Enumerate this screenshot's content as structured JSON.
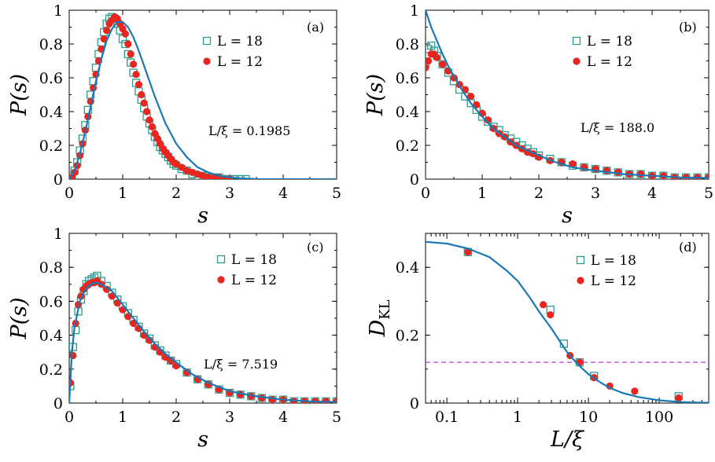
{
  "chart_data": [
    {
      "panel": "(a)",
      "type": "scatter",
      "xlabel": "s",
      "ylabel": "P(s)",
      "xlim": [
        0,
        5
      ],
      "ylim": [
        0,
        1
      ],
      "xticks": [
        "0",
        "1",
        "2",
        "3",
        "4",
        "5"
      ],
      "yticks": [
        "0",
        "0.2",
        "0.4",
        "0.6",
        "0.8",
        "1"
      ],
      "annotation": "L/ξ = 0.1985",
      "legend_position": "top-right",
      "series": [
        {
          "name": "L = 18",
          "marker": "open-square",
          "color": "#2a9d8f",
          "x": [
            0.05,
            0.1,
            0.15,
            0.2,
            0.25,
            0.3,
            0.35,
            0.4,
            0.45,
            0.5,
            0.55,
            0.6,
            0.65,
            0.7,
            0.75,
            0.8,
            0.85,
            0.9,
            0.95,
            1.0,
            1.05,
            1.1,
            1.15,
            1.2,
            1.25,
            1.3,
            1.35,
            1.4,
            1.45,
            1.5,
            1.55,
            1.6,
            1.65,
            1.7,
            1.75,
            1.8,
            1.85,
            1.9,
            1.95,
            2.0,
            2.1,
            2.2,
            2.3,
            2.4,
            2.5,
            2.6,
            2.7,
            2.8,
            2.9,
            3.0,
            3.1,
            3.2,
            3.3
          ],
          "y": [
            0.02,
            0.05,
            0.1,
            0.17,
            0.24,
            0.32,
            0.41,
            0.5,
            0.58,
            0.66,
            0.74,
            0.81,
            0.87,
            0.92,
            0.95,
            0.96,
            0.95,
            0.92,
            0.88,
            0.83,
            0.8,
            0.74,
            0.69,
            0.63,
            0.57,
            0.52,
            0.47,
            0.42,
            0.37,
            0.33,
            0.29,
            0.25,
            0.22,
            0.19,
            0.17,
            0.15,
            0.13,
            0.11,
            0.09,
            0.08,
            0.06,
            0.05,
            0.03,
            0.02,
            0.02,
            0.01,
            0.01,
            0.01,
            0.0,
            0.0,
            0.0,
            0.0,
            0.0
          ]
        },
        {
          "name": "L = 12",
          "marker": "filled-circle",
          "color": "#e8251f",
          "x": [
            0.05,
            0.1,
            0.15,
            0.2,
            0.25,
            0.3,
            0.35,
            0.4,
            0.45,
            0.5,
            0.55,
            0.6,
            0.65,
            0.7,
            0.75,
            0.8,
            0.85,
            0.9,
            0.95,
            1.0,
            1.05,
            1.1,
            1.15,
            1.2,
            1.25,
            1.3,
            1.35,
            1.4,
            1.45,
            1.5,
            1.55,
            1.6,
            1.65,
            1.7,
            1.75,
            1.8,
            1.85,
            1.9,
            1.95,
            2.0,
            2.1,
            2.2,
            2.3,
            2.4,
            2.5,
            2.6,
            2.7,
            2.8,
            2.9,
            3.0
          ],
          "y": [
            0.01,
            0.04,
            0.08,
            0.14,
            0.21,
            0.29,
            0.37,
            0.46,
            0.54,
            0.62,
            0.7,
            0.77,
            0.83,
            0.88,
            0.92,
            0.94,
            0.96,
            0.95,
            0.92,
            0.89,
            0.86,
            0.8,
            0.74,
            0.68,
            0.62,
            0.56,
            0.5,
            0.45,
            0.4,
            0.35,
            0.31,
            0.27,
            0.24,
            0.21,
            0.18,
            0.16,
            0.14,
            0.12,
            0.1,
            0.09,
            0.07,
            0.05,
            0.04,
            0.03,
            0.02,
            0.01,
            0.01,
            0.01,
            0.0,
            0.0
          ]
        }
      ],
      "curve": {
        "x": [
          0,
          0.1,
          0.2,
          0.3,
          0.4,
          0.5,
          0.6,
          0.7,
          0.8,
          0.9,
          1.0,
          1.1,
          1.2,
          1.3,
          1.4,
          1.5,
          1.6,
          1.7,
          1.8,
          1.9,
          2.0,
          2.2,
          2.4,
          2.6,
          2.8,
          3.0,
          3.2,
          3.5,
          4.0,
          4.5,
          5.0
        ],
        "y": [
          0,
          0.05,
          0.15,
          0.28,
          0.43,
          0.58,
          0.71,
          0.82,
          0.89,
          0.93,
          0.93,
          0.9,
          0.84,
          0.76,
          0.67,
          0.58,
          0.49,
          0.41,
          0.33,
          0.27,
          0.21,
          0.13,
          0.07,
          0.04,
          0.02,
          0.01,
          0.005,
          0.001,
          0,
          0,
          0
        ]
      }
    },
    {
      "panel": "(b)",
      "type": "scatter",
      "xlabel": "s",
      "ylabel": "P(s)",
      "xlim": [
        0,
        5
      ],
      "ylim": [
        0,
        1
      ],
      "xticks": [
        "0",
        "1",
        "2",
        "3",
        "4",
        "5"
      ],
      "yticks": [
        "0",
        "0.2",
        "0.4",
        "0.6",
        "0.8",
        "1"
      ],
      "annotation": "L/ξ = 188.0",
      "legend_position": "top-right",
      "series": [
        {
          "name": "L = 18",
          "marker": "open-square",
          "color": "#2a9d8f",
          "x": [
            0.0,
            0.05,
            0.1,
            0.15,
            0.2,
            0.3,
            0.4,
            0.5,
            0.6,
            0.7,
            0.8,
            0.9,
            1.0,
            1.1,
            1.2,
            1.3,
            1.4,
            1.5,
            1.6,
            1.7,
            1.8,
            1.9,
            2.0,
            2.2,
            2.4,
            2.6,
            2.8,
            3.0,
            3.2,
            3.4,
            3.6,
            3.8,
            4.0,
            4.2,
            4.4,
            4.6,
            4.8,
            5.0
          ],
          "y": [
            0.69,
            0.77,
            0.79,
            0.76,
            0.73,
            0.68,
            0.63,
            0.58,
            0.53,
            0.49,
            0.45,
            0.41,
            0.37,
            0.34,
            0.31,
            0.29,
            0.26,
            0.24,
            0.22,
            0.2,
            0.18,
            0.16,
            0.14,
            0.12,
            0.1,
            0.08,
            0.07,
            0.06,
            0.05,
            0.04,
            0.03,
            0.03,
            0.02,
            0.02,
            0.01,
            0.01,
            0.01,
            0.01
          ]
        },
        {
          "name": "L = 12",
          "marker": "filled-circle",
          "color": "#e8251f",
          "x": [
            0.0,
            0.05,
            0.1,
            0.15,
            0.2,
            0.3,
            0.4,
            0.5,
            0.6,
            0.7,
            0.8,
            0.9,
            1.0,
            1.1,
            1.2,
            1.3,
            1.4,
            1.5,
            1.6,
            1.7,
            1.8,
            1.9,
            2.0,
            2.2,
            2.4,
            2.6,
            2.8,
            3.0,
            3.2,
            3.4,
            3.6,
            3.8,
            4.0,
            4.2,
            4.4,
            4.6,
            4.8,
            5.0
          ],
          "y": [
            0.66,
            0.7,
            0.74,
            0.74,
            0.72,
            0.68,
            0.64,
            0.6,
            0.56,
            0.53,
            0.49,
            0.44,
            0.39,
            0.35,
            0.3,
            0.27,
            0.25,
            0.22,
            0.2,
            0.18,
            0.16,
            0.15,
            0.13,
            0.11,
            0.1,
            0.09,
            0.07,
            0.06,
            0.05,
            0.04,
            0.03,
            0.03,
            0.02,
            0.02,
            0.01,
            0.01,
            0.01,
            0.01
          ]
        }
      ],
      "curve": {
        "x": [
          0,
          0.1,
          0.2,
          0.3,
          0.4,
          0.5,
          0.6,
          0.8,
          1.0,
          1.2,
          1.4,
          1.6,
          1.8,
          2.0,
          2.3,
          2.6,
          3.0,
          3.5,
          4.0,
          4.5,
          5.0
        ],
        "y": [
          1.0,
          0.9,
          0.82,
          0.74,
          0.67,
          0.61,
          0.55,
          0.45,
          0.37,
          0.3,
          0.25,
          0.2,
          0.17,
          0.14,
          0.1,
          0.07,
          0.05,
          0.03,
          0.02,
          0.01,
          0.007
        ]
      }
    },
    {
      "panel": "(c)",
      "type": "scatter",
      "xlabel": "s",
      "ylabel": "P(s)",
      "xlim": [
        0,
        5
      ],
      "ylim": [
        0,
        1
      ],
      "xticks": [
        "0",
        "1",
        "2",
        "3",
        "4",
        "5"
      ],
      "yticks": [
        "0",
        "0.2",
        "0.4",
        "0.6",
        "0.8",
        "1"
      ],
      "annotation": "L/ξ = 7.519",
      "legend_position": "top-right",
      "series": [
        {
          "name": "L = 18",
          "marker": "open-square",
          "color": "#2a9d8f",
          "x": [
            0.02,
            0.07,
            0.12,
            0.17,
            0.22,
            0.27,
            0.32,
            0.37,
            0.42,
            0.47,
            0.52,
            0.6,
            0.7,
            0.8,
            0.9,
            1.0,
            1.1,
            1.2,
            1.3,
            1.4,
            1.5,
            1.6,
            1.7,
            1.8,
            1.9,
            2.0,
            2.2,
            2.4,
            2.6,
            2.8,
            3.0,
            3.2,
            3.4,
            3.6,
            3.8,
            4.0,
            4.2,
            4.4,
            4.6,
            4.8,
            5.0
          ],
          "y": [
            0.1,
            0.33,
            0.43,
            0.54,
            0.61,
            0.66,
            0.7,
            0.72,
            0.73,
            0.74,
            0.75,
            0.72,
            0.69,
            0.65,
            0.61,
            0.57,
            0.53,
            0.49,
            0.45,
            0.41,
            0.38,
            0.34,
            0.31,
            0.28,
            0.25,
            0.23,
            0.18,
            0.14,
            0.11,
            0.08,
            0.06,
            0.05,
            0.04,
            0.03,
            0.02,
            0.02,
            0.01,
            0.01,
            0.01,
            0.01,
            0.01
          ]
        },
        {
          "name": "L = 12",
          "marker": "filled-circle",
          "color": "#e8251f",
          "x": [
            0.02,
            0.07,
            0.12,
            0.17,
            0.22,
            0.27,
            0.32,
            0.37,
            0.42,
            0.47,
            0.52,
            0.6,
            0.7,
            0.8,
            0.9,
            1.0,
            1.1,
            1.2,
            1.3,
            1.4,
            1.5,
            1.6,
            1.7,
            1.8,
            1.9,
            2.0,
            2.2,
            2.4,
            2.6,
            2.8,
            3.0,
            3.2,
            3.4,
            3.6,
            3.8,
            4.0,
            4.2,
            4.4,
            4.6,
            4.8,
            5.0
          ],
          "y": [
            0.12,
            0.28,
            0.47,
            0.58,
            0.63,
            0.67,
            0.69,
            0.7,
            0.71,
            0.71,
            0.72,
            0.7,
            0.67,
            0.63,
            0.59,
            0.55,
            0.51,
            0.47,
            0.44,
            0.4,
            0.37,
            0.33,
            0.3,
            0.27,
            0.25,
            0.22,
            0.18,
            0.14,
            0.11,
            0.08,
            0.06,
            0.05,
            0.04,
            0.03,
            0.02,
            0.02,
            0.01,
            0.01,
            0.01,
            0.01,
            0.01
          ]
        }
      ],
      "curve": {
        "x": [
          0,
          0.05,
          0.1,
          0.2,
          0.3,
          0.4,
          0.5,
          0.6,
          0.7,
          0.8,
          1.0,
          1.2,
          1.4,
          1.6,
          1.8,
          2.0,
          2.3,
          2.6,
          3.0,
          3.5,
          4.0,
          4.5,
          5.0
        ],
        "y": [
          0,
          0.3,
          0.45,
          0.6,
          0.67,
          0.7,
          0.71,
          0.7,
          0.68,
          0.66,
          0.58,
          0.5,
          0.42,
          0.35,
          0.29,
          0.24,
          0.17,
          0.12,
          0.07,
          0.04,
          0.02,
          0.01,
          0.006
        ]
      }
    },
    {
      "panel": "(d)",
      "type": "scatter",
      "xlabel": "L/ξ",
      "ylabel": "D_KL",
      "xscale": "log",
      "xlim": [
        0.05,
        500
      ],
      "ylim": [
        0,
        0.5
      ],
      "xticks": [
        "0.1",
        "1",
        "10",
        "100"
      ],
      "yticks": [
        "0",
        "0.2",
        "0.4"
      ],
      "reference_line": {
        "y": 0.12,
        "style": "dashed",
        "color": "#b541d6"
      },
      "legend_position": "top-right",
      "series": [
        {
          "name": "L = 18",
          "marker": "open-square",
          "color": "#2a9d8f",
          "x": [
            0.1985,
            2.9,
            4.5,
            7.519,
            12.0,
            188.0
          ],
          "y": [
            0.445,
            0.275,
            0.175,
            0.12,
            0.08,
            0.02
          ]
        },
        {
          "name": "L = 12",
          "marker": "filled-circle",
          "color": "#e8251f",
          "x": [
            0.1985,
            2.3,
            2.9,
            5.5,
            7.519,
            12.0,
            20.0,
            45.0,
            188.0
          ],
          "y": [
            0.445,
            0.29,
            0.26,
            0.14,
            0.12,
            0.075,
            0.05,
            0.035,
            0.015
          ]
        }
      ],
      "curve": {
        "x": [
          0.05,
          0.1,
          0.2,
          0.4,
          0.7,
          1,
          1.5,
          2,
          3,
          4,
          5,
          7,
          10,
          15,
          20,
          30,
          50,
          100,
          200,
          500
        ],
        "y": [
          0.475,
          0.47,
          0.455,
          0.43,
          0.39,
          0.36,
          0.31,
          0.27,
          0.22,
          0.18,
          0.15,
          0.115,
          0.085,
          0.06,
          0.045,
          0.03,
          0.018,
          0.008,
          0.003,
          0.001
        ]
      }
    }
  ],
  "colors": {
    "curve": "#1a78b4",
    "square": "#2a9d8f",
    "circle": "#e8251f",
    "dashed": "#b541d6"
  }
}
